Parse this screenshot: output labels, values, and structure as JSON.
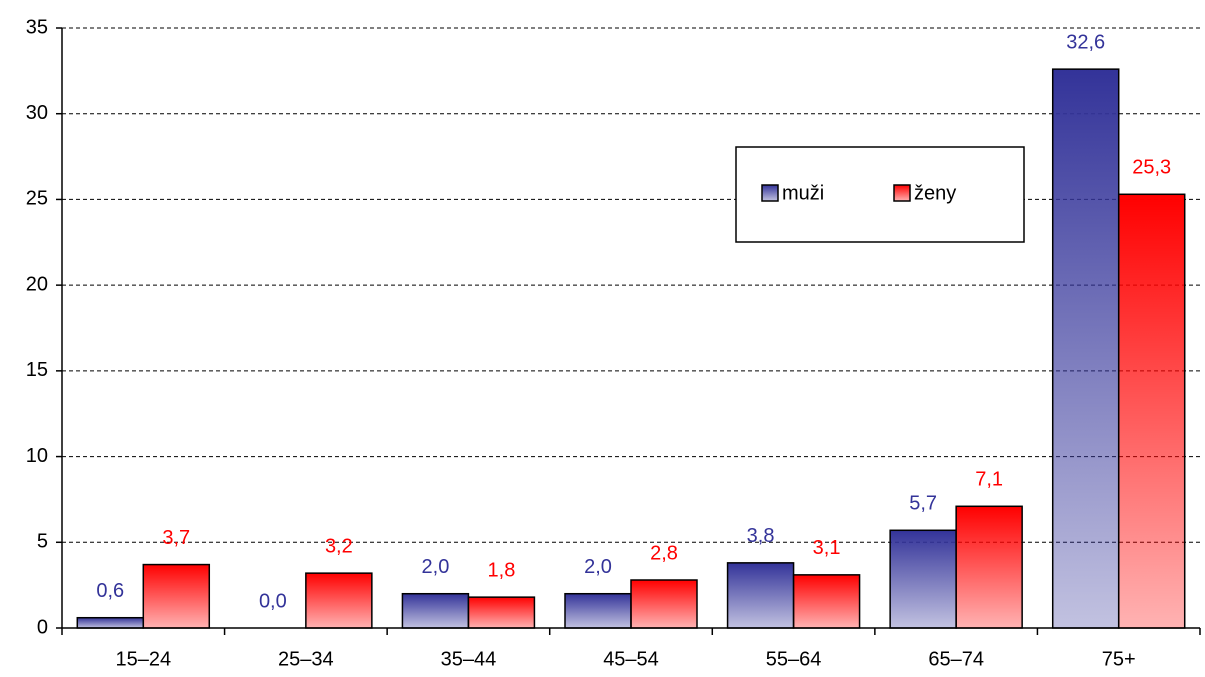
{
  "chart_data": {
    "type": "bar",
    "categories": [
      "15–24",
      "25–34",
      "35–44",
      "45–54",
      "55–64",
      "65–74",
      "75+"
    ],
    "series": [
      {
        "name": "muži",
        "color": "#333399",
        "values": [
          0.6,
          0.0,
          2.0,
          2.0,
          3.8,
          5.7,
          32.6
        ],
        "value_labels": [
          "0,6",
          "0,0",
          "2,0",
          "2,0",
          "3,8",
          "5,7",
          "32,6"
        ]
      },
      {
        "name": "ženy",
        "color": "#ff0000",
        "values": [
          3.7,
          3.2,
          1.8,
          2.8,
          3.1,
          7.1,
          25.3
        ],
        "value_labels": [
          "3,7",
          "3,2",
          "1,8",
          "2,8",
          "3,1",
          "7,1",
          "25,3"
        ]
      }
    ],
    "ylim": [
      0,
      35
    ],
    "yticks": [
      0,
      5,
      10,
      15,
      20,
      25,
      30,
      35
    ],
    "grid": true,
    "legend": "upper right"
  }
}
